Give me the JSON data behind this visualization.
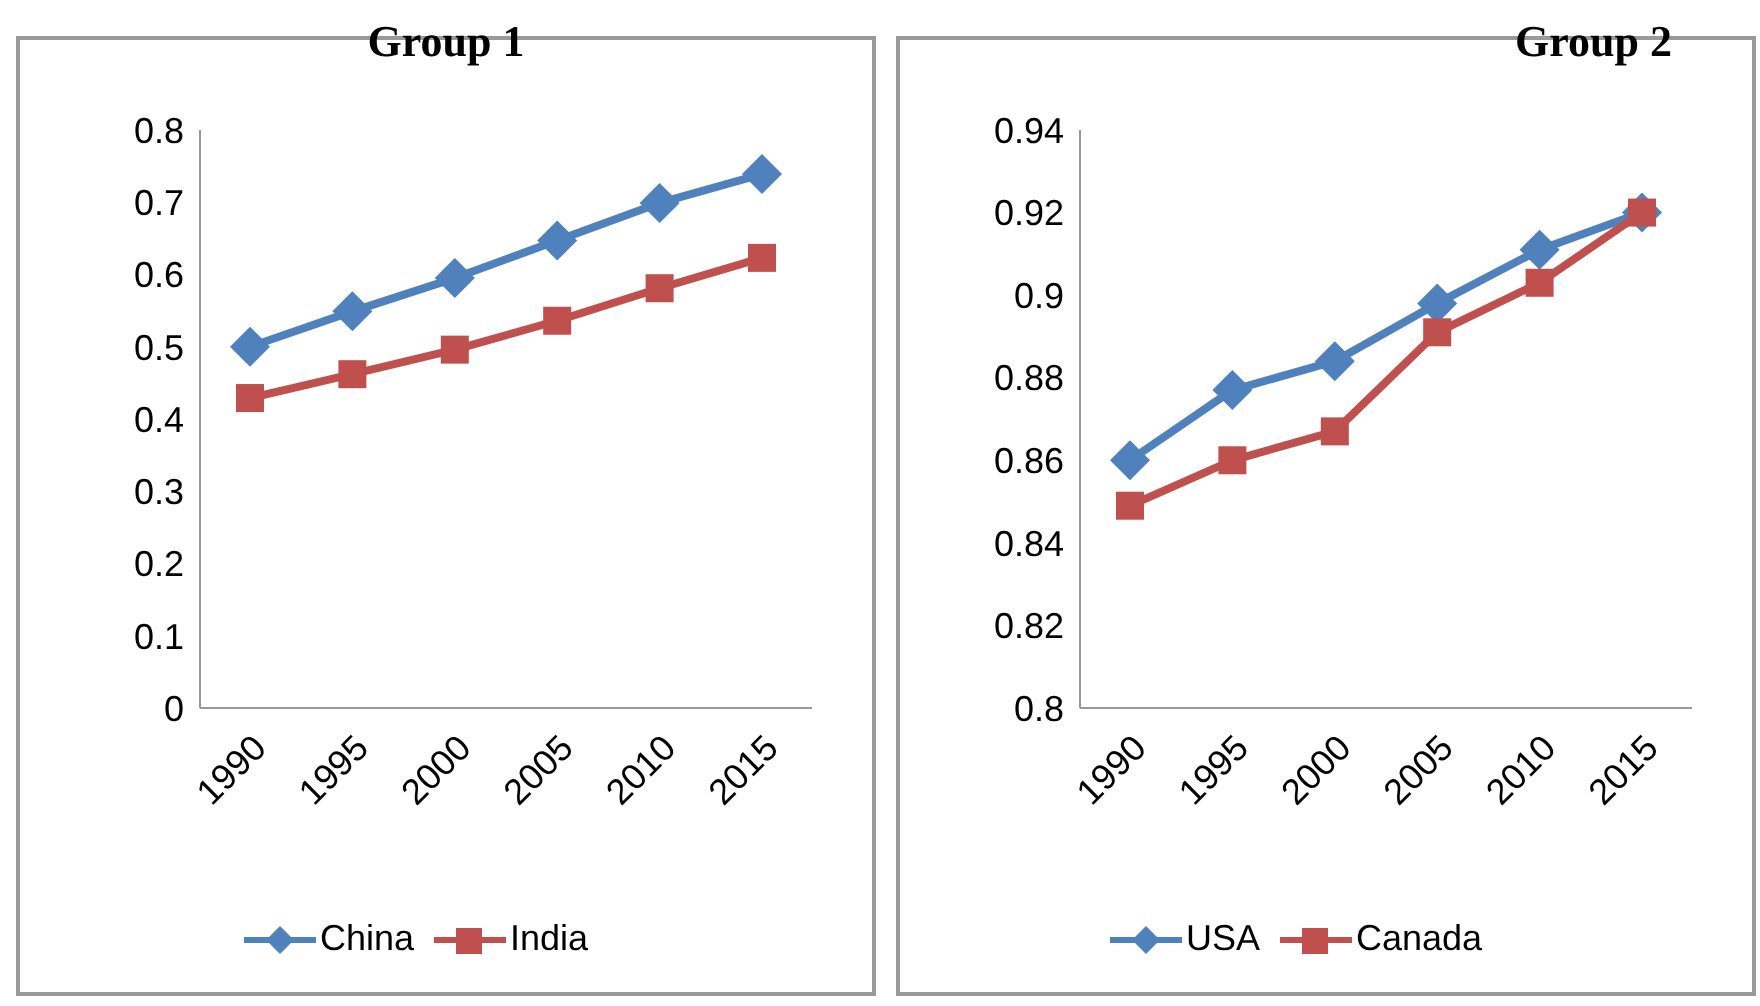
{
  "chart_data": [
    {
      "type": "line",
      "title": "Group 1",
      "categories": [
        "1990",
        "1995",
        "2000",
        "2005",
        "2010",
        "2015"
      ],
      "ylim": [
        0,
        0.8
      ],
      "yticks": [
        0,
        0.1,
        0.2,
        0.3,
        0.4,
        0.5,
        0.6,
        0.7,
        0.8
      ],
      "grid": false,
      "legend": "bottom",
      "series": [
        {
          "name": "China",
          "color": "#4f81bd",
          "marker": "diamond",
          "values": [
            0.5,
            0.549,
            0.595,
            0.647,
            0.699,
            0.739
          ]
        },
        {
          "name": "India",
          "color": "#c0504d",
          "marker": "square",
          "values": [
            0.429,
            0.462,
            0.496,
            0.536,
            0.581,
            0.623
          ]
        }
      ]
    },
    {
      "type": "line",
      "title": "Group 2",
      "categories": [
        "1990",
        "1995",
        "2000",
        "2005",
        "2010",
        "2015"
      ],
      "ylim": [
        0.8,
        0.94
      ],
      "yticks": [
        0.8,
        0.82,
        0.84,
        0.86,
        0.88,
        0.9,
        0.92,
        0.94
      ],
      "grid": false,
      "legend": "bottom",
      "series": [
        {
          "name": "USA",
          "color": "#4f81bd",
          "marker": "diamond",
          "values": [
            0.86,
            0.877,
            0.884,
            0.898,
            0.911,
            0.92
          ]
        },
        {
          "name": "Canada",
          "color": "#c0504d",
          "marker": "square",
          "values": [
            0.849,
            0.86,
            0.867,
            0.891,
            0.903,
            0.92
          ]
        }
      ]
    }
  ]
}
